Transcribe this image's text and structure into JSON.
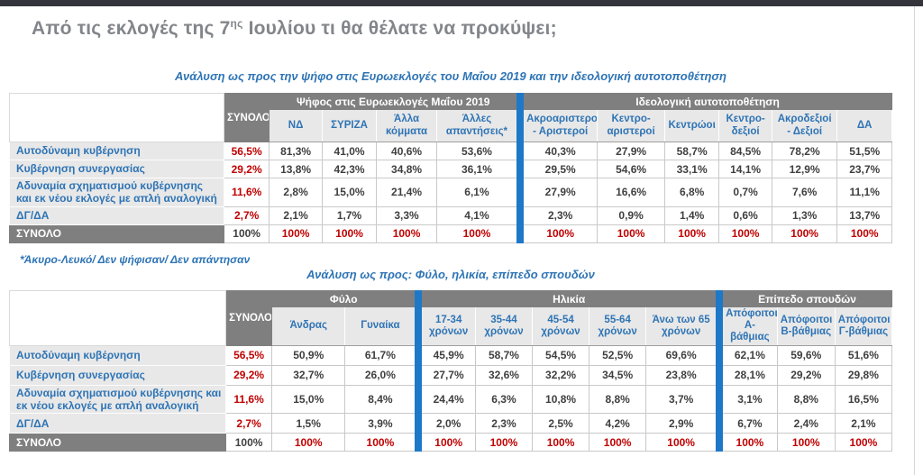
{
  "page": {
    "title_pre": "Από τις εκλογές της 7",
    "title_sup": "ης",
    "title_post": " Ιουλίου τι θα θέλατε να προκύψει;"
  },
  "colors": {
    "accent_blue": "#2e74b5",
    "separator_blue": "#1e78c8",
    "header_gray": "#7f7f7f",
    "light_gray": "#e8e8e8",
    "value_red": "#c00000",
    "topbar_dark": "#34353c"
  },
  "section1": {
    "subtitle": "Ανάλυση ως προς την ψήφο στις Ευρωεκλογές του Μαΐου 2019 και την ιδεολογική αυτοτοποθέτηση",
    "footnote": "*Άκυρο-Λευκό/ Δεν ψήφισαν/ Δεν απάντησαν"
  },
  "section2": {
    "subtitle": "Ανάλυση ως προς: Φύλο, ηλικία, επίπεδο σπουδών"
  },
  "tables": [
    {
      "name": "analysis-by-europarl-vote-and-ideology",
      "total_label": "ΣΥΝΟΛΟ",
      "groups": [
        {
          "label": "Ψήφος στις Ευρωεκλογές Μαΐου 2019",
          "cols": [
            "ΝΔ",
            "ΣΥΡΙΖΑ",
            "Άλλα κόμματα",
            "Άλλες απαντήσεις*"
          ]
        },
        {
          "label": "Ιδεολογική αυτοτοποθέτηση",
          "cols": [
            "Ακροαριστεροί - Αριστεροί",
            "Κεντρο-αριστεροί",
            "Κεντρώοι",
            "Κεντρο-δεξιοί",
            "Ακροδεξιοί - Δεξιοί",
            "ΔΑ"
          ]
        }
      ],
      "rows": [
        {
          "label": "Αυτοδύναμη κυβέρνηση",
          "total": "56,5%",
          "groups": [
            [
              "81,3%",
              "41,0%",
              "40,6%",
              "53,6%"
            ],
            [
              "40,3%",
              "27,9%",
              "58,7%",
              "84,5%",
              "78,2%",
              "51,5%"
            ]
          ]
        },
        {
          "label": "Κυβέρνηση συνεργασίας",
          "total": "29,2%",
          "groups": [
            [
              "13,8%",
              "42,3%",
              "34,8%",
              "36,1%"
            ],
            [
              "29,5%",
              "54,6%",
              "33,1%",
              "14,1%",
              "12,9%",
              "23,7%"
            ]
          ]
        },
        {
          "label": "Αδυναμία σχηματισμού κυβέρνησης και εκ νέου εκλογές με απλή αναλογική",
          "total": "11,6%",
          "groups": [
            [
              "2,8%",
              "15,0%",
              "21,4%",
              "6,1%"
            ],
            [
              "27,9%",
              "16,6%",
              "6,8%",
              "0,7%",
              "7,6%",
              "11,1%"
            ]
          ]
        },
        {
          "label": "ΔΓ/ΔΑ",
          "total": "2,7%",
          "groups": [
            [
              "2,1%",
              "1,7%",
              "3,3%",
              "4,1%"
            ],
            [
              "2,3%",
              "0,9%",
              "1,4%",
              "0,6%",
              "1,3%",
              "13,7%"
            ]
          ]
        }
      ],
      "footer": {
        "label": "ΣΥΝΟΛΟ",
        "total": "100%",
        "groups": [
          [
            "100%",
            "100%",
            "100%",
            "100%"
          ],
          [
            "100%",
            "100%",
            "100%",
            "100%",
            "100%",
            "100%"
          ]
        ]
      }
    },
    {
      "name": "analysis-by-gender-age-education",
      "total_label": "ΣΥΝΟΛΟ",
      "groups": [
        {
          "label": "Φύλο",
          "cols": [
            "Άνδρας",
            "Γυναίκα"
          ]
        },
        {
          "label": "Ηλικία",
          "cols": [
            "17-34 χρόνων",
            "35-44 χρόνων",
            "45-54 χρόνων",
            "55-64 χρόνων",
            "Άνω των 65 χρόνων"
          ]
        },
        {
          "label": "Επίπεδο σπουδών",
          "cols": [
            "Απόφοιτοι Α-βάθμιας",
            "Απόφοιτοι Β-βάθμιας",
            "Απόφοιτοι Γ-βάθμιας"
          ]
        }
      ],
      "rows": [
        {
          "label": "Αυτοδύναμη κυβέρνηση",
          "total": "56,5%",
          "groups": [
            [
              "50,9%",
              "61,7%"
            ],
            [
              "45,9%",
              "58,7%",
              "54,5%",
              "52,5%",
              "69,6%"
            ],
            [
              "62,1%",
              "59,6%",
              "51,6%"
            ]
          ]
        },
        {
          "label": "Κυβέρνηση συνεργασίας",
          "total": "29,2%",
          "groups": [
            [
              "32,7%",
              "26,0%"
            ],
            [
              "27,7%",
              "32,6%",
              "32,2%",
              "34,5%",
              "23,8%"
            ],
            [
              "28,1%",
              "29,2%",
              "29,8%"
            ]
          ]
        },
        {
          "label": "Αδυναμία σχηματισμού κυβέρνησης και εκ νέου εκλογές με απλή αναλογική",
          "total": "11,6%",
          "groups": [
            [
              "15,0%",
              "8,4%"
            ],
            [
              "24,4%",
              "6,3%",
              "10,8%",
              "8,8%",
              "3,7%"
            ],
            [
              "3,1%",
              "8,8%",
              "16,5%"
            ]
          ]
        },
        {
          "label": "ΔΓ/ΔΑ",
          "total": "2,7%",
          "groups": [
            [
              "1,5%",
              "3,9%"
            ],
            [
              "2,0%",
              "2,3%",
              "2,5%",
              "4,2%",
              "2,9%"
            ],
            [
              "6,7%",
              "2,4%",
              "2,1%"
            ]
          ]
        }
      ],
      "footer": {
        "label": "ΣΥΝΟΛΟ",
        "total": "100%",
        "groups": [
          [
            "100%",
            "100%"
          ],
          [
            "100%",
            "100%",
            "100%",
            "100%",
            "100%"
          ],
          [
            "100%",
            "100%",
            "100%"
          ]
        ]
      }
    }
  ]
}
